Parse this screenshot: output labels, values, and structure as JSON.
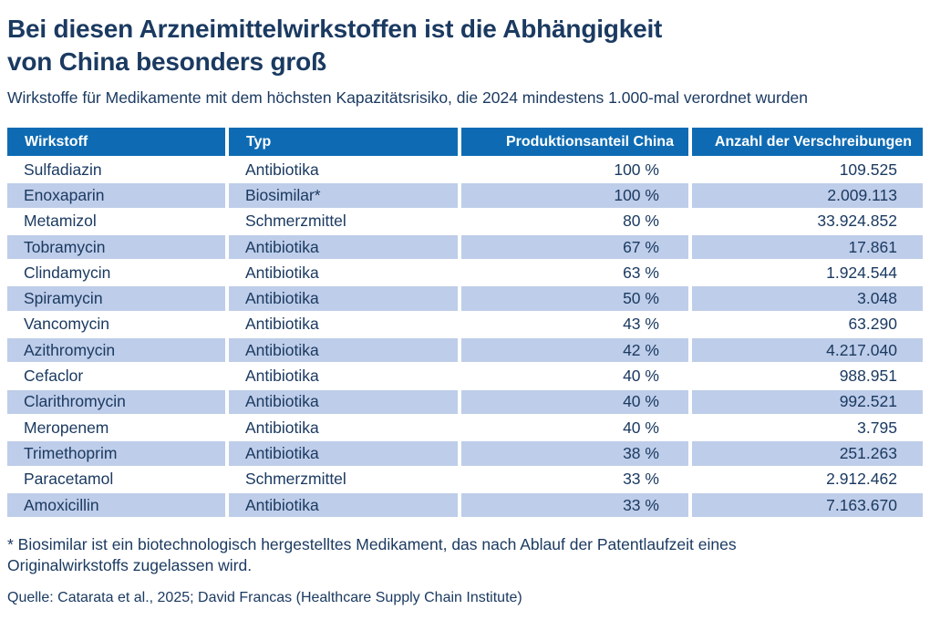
{
  "page": {
    "title_lines": [
      "Bei diesen Arzneimittelwirkstoffen ist die Abhängigkeit",
      "von China besonders groß"
    ],
    "subtitle": "Wirkstoffe für Medikamente mit dem höchsten Kapazitätsrisiko, die 2024 mindestens 1.000-mal verordnet wurden",
    "footnote": "* Biosimilar ist ein biotechnologisch hergestelltes Medikament, das nach Ablauf der Patentlaufzeit eines Originalwirkstoffs zugelassen wird.",
    "source": "Quelle: Catarata et al., 2025; David Francas (Healthcare Supply Chain Institute)"
  },
  "colors": {
    "header_bg": "#0e6bb3",
    "row_alt_bg": "#becde9",
    "text": "#1b3a61",
    "header_text": "#ffffff",
    "page_bg": "#ffffff"
  },
  "chart_data": {
    "type": "table",
    "title": "Bei diesen Arzneimittelwirkstoffen ist die Abhängigkeit von China besonders groß",
    "subtitle": "Wirkstoffe für Medikamente mit dem höchsten Kapazitätsrisiko, die 2024 mindestens 1.000-mal verordnet wurden",
    "columns": [
      "Wirkstoff",
      "Typ",
      "Produktionsanteil China",
      "Anzahl der Verschreibungen"
    ],
    "rows": [
      {
        "wirkstoff": "Sulfadiazin",
        "typ": "Antibiotika",
        "produktionsanteil_china": "100 %",
        "anzahl_verschreibungen": "109.525"
      },
      {
        "wirkstoff": "Enoxaparin",
        "typ": "Biosimilar*",
        "produktionsanteil_china": "100 %",
        "anzahl_verschreibungen": "2.009.113"
      },
      {
        "wirkstoff": "Metamizol",
        "typ": "Schmerzmittel",
        "produktionsanteil_china": "80 %",
        "anzahl_verschreibungen": "33.924.852"
      },
      {
        "wirkstoff": "Tobramycin",
        "typ": "Antibiotika",
        "produktionsanteil_china": "67 %",
        "anzahl_verschreibungen": "17.861"
      },
      {
        "wirkstoff": "Clindamycin",
        "typ": "Antibiotika",
        "produktionsanteil_china": "63 %",
        "anzahl_verschreibungen": "1.924.544"
      },
      {
        "wirkstoff": "Spiramycin",
        "typ": "Antibiotika",
        "produktionsanteil_china": "50 %",
        "anzahl_verschreibungen": "3.048"
      },
      {
        "wirkstoff": "Vancomycin",
        "typ": "Antibiotika",
        "produktionsanteil_china": "43 %",
        "anzahl_verschreibungen": "63.290"
      },
      {
        "wirkstoff": "Azithromycin",
        "typ": "Antibiotika",
        "produktionsanteil_china": "42 %",
        "anzahl_verschreibungen": "4.217.040"
      },
      {
        "wirkstoff": "Cefaclor",
        "typ": "Antibiotika",
        "produktionsanteil_china": "40 %",
        "anzahl_verschreibungen": "988.951"
      },
      {
        "wirkstoff": "Clarithromycin",
        "typ": "Antibiotika",
        "produktionsanteil_china": "40 %",
        "anzahl_verschreibungen": "992.521"
      },
      {
        "wirkstoff": "Meropenem",
        "typ": "Antibiotika",
        "produktionsanteil_china": "40 %",
        "anzahl_verschreibungen": "3.795"
      },
      {
        "wirkstoff": "Trimethoprim",
        "typ": "Antibiotika",
        "produktionsanteil_china": "38 %",
        "anzahl_verschreibungen": "251.263"
      },
      {
        "wirkstoff": "Paracetamol",
        "typ": "Schmerzmittel",
        "produktionsanteil_china": "33 %",
        "anzahl_verschreibungen": "2.912.462"
      },
      {
        "wirkstoff": "Amoxicillin",
        "typ": "Antibiotika",
        "produktionsanteil_china": "33 %",
        "anzahl_verschreibungen": "7.163.670"
      }
    ],
    "footnote": "* Biosimilar ist ein biotechnologisch hergestelltes Medikament, das nach Ablauf der Patentlaufzeit eines Originalwirkstoffs zugelassen wird.",
    "source": "Quelle: Catarata et al., 2025; David Francas (Healthcare Supply Chain Institute)"
  }
}
